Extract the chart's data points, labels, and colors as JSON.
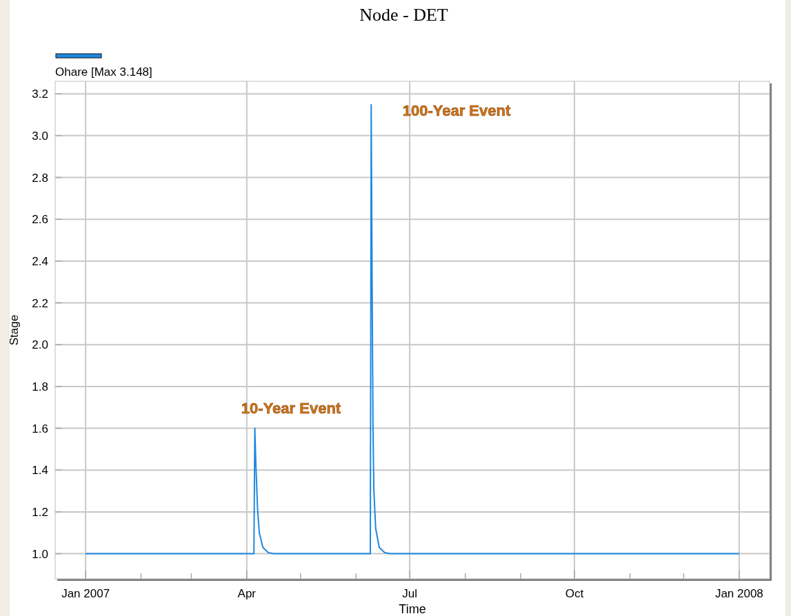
{
  "chart_data": {
    "type": "line",
    "title": "Node - DET",
    "xlabel": "Time",
    "ylabel": "Stage",
    "legend": "top left",
    "grid": true,
    "line_style": "solid",
    "marker": "none",
    "xlim": [
      "2006-12-15",
      "2008-01-18"
    ],
    "xticks": [
      {
        "value": "2007-01-01",
        "label": "Jan 2007"
      },
      {
        "value": "2007-02-01",
        "label": null
      },
      {
        "value": "2007-03-01",
        "label": null
      },
      {
        "value": "2007-04-01",
        "label": "Apr"
      },
      {
        "value": "2007-05-01",
        "label": null
      },
      {
        "value": "2007-06-01",
        "label": null
      },
      {
        "value": "2007-07-01",
        "label": "Jul"
      },
      {
        "value": "2007-08-01",
        "label": null
      },
      {
        "value": "2007-09-01",
        "label": null
      },
      {
        "value": "2007-10-01",
        "label": "Oct"
      },
      {
        "value": "2007-11-01",
        "label": null
      },
      {
        "value": "2007-12-01",
        "label": null
      },
      {
        "value": "2008-01-01",
        "label": "Jan 2008"
      }
    ],
    "ylim": [
      0.88,
      3.26
    ],
    "yticks": [
      {
        "value": 1.0,
        "label": "1.0"
      },
      {
        "value": 1.2,
        "label": "1.2"
      },
      {
        "value": 1.4,
        "label": "1.4"
      },
      {
        "value": 1.6,
        "label": "1.6"
      },
      {
        "value": 1.8,
        "label": "1.8"
      },
      {
        "value": 2.0,
        "label": "2.0"
      },
      {
        "value": 2.2,
        "label": "2.2"
      },
      {
        "value": 2.4,
        "label": "2.4"
      },
      {
        "value": 2.6,
        "label": "2.6"
      },
      {
        "value": 2.8,
        "label": "2.8"
      },
      {
        "value": 3.0,
        "label": "3.0"
      },
      {
        "value": 3.2,
        "label": "3.2"
      }
    ],
    "x": [
      "2007-01-01",
      "2007-04-05",
      "2007-04-05T12:00",
      "2007-04-06",
      "2007-04-07",
      "2007-04-08",
      "2007-04-10",
      "2007-04-13",
      "2007-04-16",
      "2007-06-09",
      "2007-06-09T12:00",
      "2007-06-10",
      "2007-06-10T12:00",
      "2007-06-11",
      "2007-06-12",
      "2007-06-14",
      "2007-06-17",
      "2007-06-20",
      "2008-01-01"
    ],
    "series": [
      {
        "name": "Ohare [Max 3.148]",
        "color": "#1e88e0",
        "values": [
          1.0,
          1.0,
          1.6,
          1.45,
          1.22,
          1.1,
          1.03,
          1.005,
          1.0,
          1.0,
          3.148,
          2.3,
          1.6,
          1.3,
          1.12,
          1.03,
          1.005,
          1.0,
          1.0
        ]
      }
    ],
    "annotations": [
      "10-Year Event",
      "100-Year Event"
    ]
  }
}
